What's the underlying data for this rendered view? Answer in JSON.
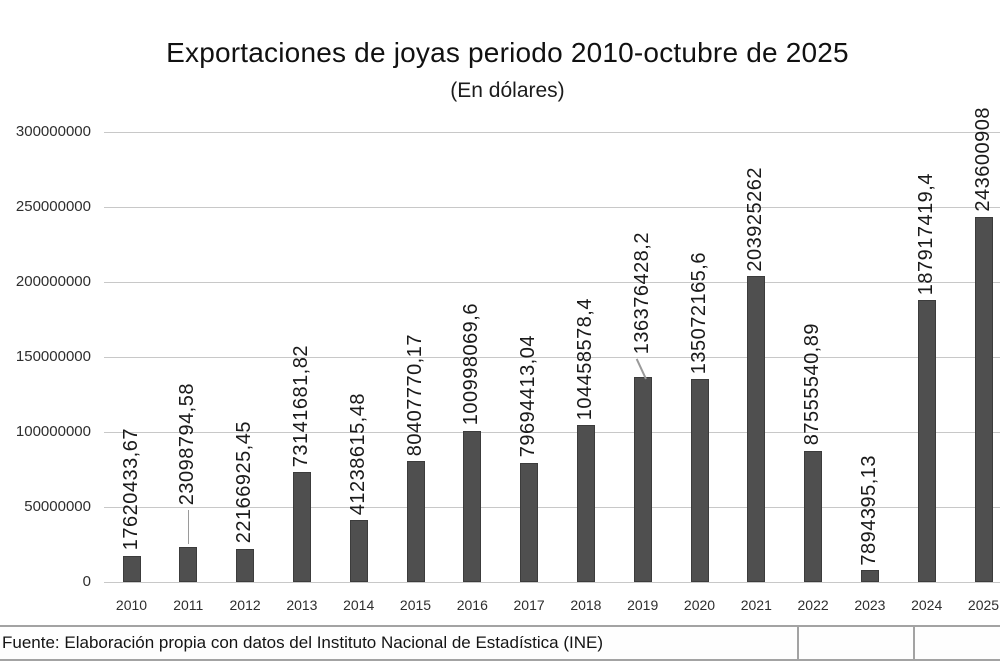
{
  "chart_data": {
    "type": "bar",
    "title": "Exportaciones de joyas periodo 2010-octubre de 2025",
    "subtitle": "(En dólares)",
    "categories": [
      "2010",
      "2011",
      "2012",
      "2013",
      "2014",
      "2015",
      "2016",
      "2017",
      "2018",
      "2019",
      "2020",
      "2021",
      "2022",
      "2023",
      "2024",
      "2025"
    ],
    "values": [
      17620433.67,
      23098794.58,
      22166925.45,
      73141681.82,
      41238615.48,
      80407770.17,
      100998069.6,
      79694413.04,
      104458578.4,
      136376428.2,
      135072165.6,
      203925262,
      87555540.89,
      7894395.13,
      187917419.4,
      243600908
    ],
    "value_labels": [
      "17620433,67",
      "23098794,58",
      "22166925,45",
      "73141681,82",
      "41238615,48",
      "80407770,17",
      "100998069,6",
      "79694413,04",
      "104458578,4",
      "136376428,2",
      "135072165,6",
      "203925262",
      "87555540,89",
      "7894395,13",
      "187917419,4",
      "243600908"
    ],
    "ylim": [
      0,
      300000000
    ],
    "y_tick_labels": [
      "300000000",
      "250000000",
      "200000000",
      "150000000",
      "100000000",
      "50000000",
      "0"
    ],
    "xlabel": "",
    "ylabel": "",
    "grid": "horizontal",
    "legend": "none",
    "bar_color": "#4f4f4f",
    "gridline_color": "#c8c8c8",
    "value_label_rotation_deg": 90,
    "labels_with_leader_lines": [
      "2011",
      "2019"
    ]
  },
  "footer": {
    "source_text": "Fuente: Elaboración propia con datos del Instituto Nacional de Estadística (INE)"
  }
}
